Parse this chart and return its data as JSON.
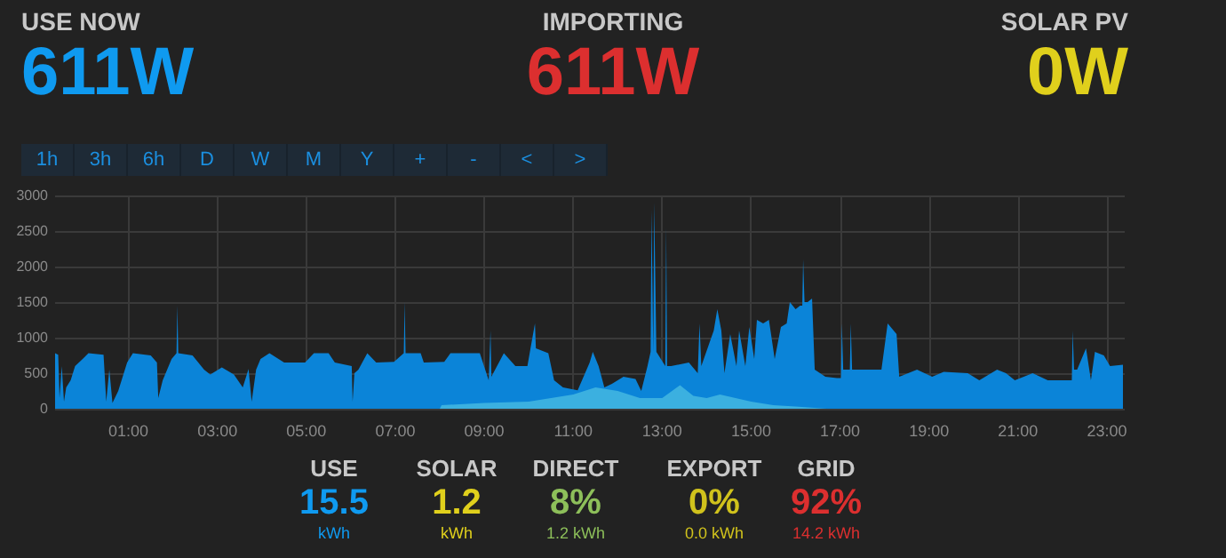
{
  "chart_data": [
    {
      "type": "other",
      "categories": [
        "USE NOW",
        "IMPORTING",
        "SOLAR PV"
      ],
      "value_labels": [
        "611W",
        "611W",
        "0W"
      ],
      "colors": [
        "#0f9af0",
        "#dc2f2f",
        "#e0d01c"
      ],
      "annotations": [
        "1h",
        "3h",
        "6h",
        "D",
        "W",
        "M",
        "Y",
        "+",
        "-",
        "<",
        ">"
      ]
    },
    {
      "type": "area",
      "xlim": [
        -0.65,
        23.4
      ],
      "ylim": [
        0,
        3000
      ],
      "yticks": [
        0,
        500,
        1000,
        1500,
        2000,
        2500,
        3000
      ],
      "xticks": [
        {
          "value": 1,
          "label": "01:00"
        },
        {
          "value": 3,
          "label": "03:00"
        },
        {
          "value": 5,
          "label": "05:00"
        },
        {
          "value": 7,
          "label": "07:00"
        },
        {
          "value": 9,
          "label": "09:00"
        },
        {
          "value": 11,
          "label": "11:00"
        },
        {
          "value": 13,
          "label": "13:00"
        },
        {
          "value": 15,
          "label": "15:00"
        },
        {
          "value": 17,
          "label": "17:00"
        },
        {
          "value": 19,
          "label": "19:00"
        },
        {
          "value": 21,
          "label": "21:00"
        },
        {
          "value": 23,
          "label": "23:00"
        }
      ],
      "grid": true,
      "marker": "none",
      "series": [
        {
          "color": "#0b84d8",
          "x": [
            -0.65,
            -0.58,
            -0.55,
            -0.5,
            -0.45,
            -0.4,
            -0.3,
            -0.2,
            -0.03,
            0.1,
            0.44,
            0.5,
            0.57,
            0.64,
            0.77,
            0.97,
            1.1,
            1.5,
            1.64,
            1.67,
            1.77,
            1.97,
            2.08,
            2.1,
            2.12,
            2.44,
            2.7,
            2.84,
            3.1,
            3.37,
            3.57,
            3.7,
            3.77,
            3.87,
            3.97,
            4.17,
            4.5,
            4.97,
            5.17,
            5.5,
            5.64,
            6.02,
            6.04,
            6.08,
            6.17,
            6.37,
            6.57,
            6.97,
            7.19,
            7.21,
            7.23,
            7.57,
            7.64,
            8.1,
            8.24,
            8.57,
            8.9,
            9.1,
            9.14,
            9.16,
            9.44,
            9.7,
            9.97,
            10.04,
            10.14,
            10.16,
            10.44,
            10.57,
            10.77,
            11.1,
            11.37,
            11.44,
            11.57,
            11.7,
            11.87,
            12.13,
            12.4,
            12.53,
            12.67,
            12.74,
            12.76,
            12.8,
            12.82,
            12.87,
            13.07,
            13.09,
            13.11,
            13.2,
            13.6,
            13.8,
            13.84,
            13.88,
            14.16,
            14.24,
            14.33,
            14.4,
            14.53,
            14.67,
            14.73,
            14.87,
            14.96,
            15.07,
            15.13,
            15.27,
            15.4,
            15.53,
            15.67,
            15.8,
            15.87,
            16.0,
            16.1,
            16.15,
            16.17,
            16.2,
            16.27,
            16.37,
            16.43,
            16.67,
            16.93,
            17.02,
            17.04,
            17.07,
            17.13,
            17.22,
            17.24,
            17.27,
            17.33,
            17.73,
            17.93,
            18.07,
            18.27,
            18.33,
            18.73,
            19.07,
            19.33,
            19.87,
            20.13,
            20.53,
            20.73,
            20.93,
            21.33,
            21.67,
            22.13,
            22.21,
            22.23,
            22.26,
            22.33,
            22.53,
            22.64,
            22.73,
            22.93,
            23.07,
            23.36
          ],
          "values": [
            780,
            760,
            150,
            600,
            100,
            300,
            400,
            600,
            700,
            780,
            760,
            100,
            550,
            80,
            250,
            650,
            780,
            750,
            650,
            150,
            400,
            700,
            780,
            1450,
            780,
            750,
            550,
            480,
            580,
            480,
            300,
            560,
            100,
            550,
            700,
            780,
            650,
            650,
            780,
            780,
            650,
            600,
            100,
            500,
            550,
            780,
            650,
            660,
            780,
            1500,
            780,
            780,
            650,
            660,
            780,
            780,
            780,
            400,
            1100,
            450,
            780,
            600,
            600,
            850,
            1200,
            850,
            780,
            400,
            300,
            260,
            650,
            800,
            600,
            300,
            350,
            450,
            420,
            250,
            600,
            800,
            2800,
            800,
            2900,
            800,
            600,
            2550,
            600,
            600,
            650,
            500,
            1200,
            600,
            1100,
            1400,
            1100,
            500,
            1050,
            600,
            1100,
            600,
            1150,
            700,
            1250,
            1200,
            1250,
            700,
            1150,
            1200,
            1500,
            1400,
            1450,
            1450,
            2100,
            1500,
            1500,
            1550,
            550,
            450,
            430,
            430,
            1200,
            550,
            550,
            550,
            1200,
            550,
            550,
            550,
            550,
            1200,
            1050,
            450,
            550,
            450,
            520,
            500,
            400,
            550,
            500,
            400,
            500,
            400,
            400,
            400,
            1100,
            550,
            550,
            850,
            400,
            800,
            750,
            600,
            620
          ]
        },
        {
          "color": "#3bb0e0",
          "x": [
            8.0,
            8.04,
            9.0,
            10.0,
            10.5,
            11.0,
            11.5,
            12.0,
            12.5,
            13.0,
            13.4,
            13.7,
            14.0,
            14.3,
            15.0,
            15.5,
            16.0,
            16.7
          ],
          "values": [
            0,
            50,
            80,
            100,
            150,
            200,
            300,
            250,
            150,
            150,
            330,
            180,
            150,
            200,
            100,
            50,
            30,
            0
          ]
        }
      ]
    },
    {
      "type": "other",
      "categories": [
        "USE",
        "SOLAR",
        "DIRECT",
        "EXPORT",
        "GRID"
      ],
      "value_labels": [
        "15.5",
        "1.2",
        "8%",
        "0%",
        "92%"
      ],
      "colors": [
        "#0f9af0",
        "#e0d01c",
        "#8dbf5a",
        "#d0c21c",
        "#dc2f2f"
      ],
      "annotations": [
        "kWh",
        "kWh",
        "1.2 kWh",
        "0.0 kWh",
        "14.2 kWh"
      ]
    }
  ]
}
